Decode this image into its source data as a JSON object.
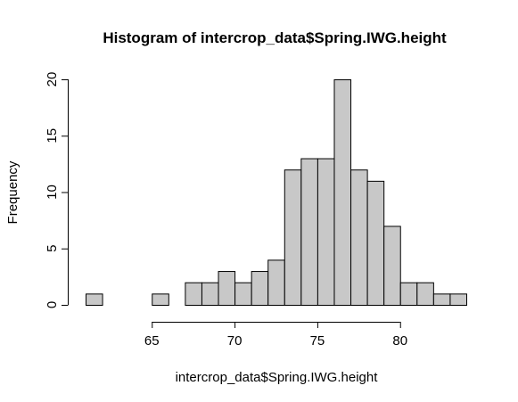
{
  "chart_data": {
    "type": "bar",
    "title": "Histogram of intercrop_data$Spring.IWG.height",
    "xlabel": "intercrop_data$Spring.IWG.height",
    "ylabel": "Frequency",
    "bin_start": 61,
    "bin_width": 1,
    "values": [
      1,
      0,
      0,
      0,
      1,
      0,
      2,
      2,
      3,
      2,
      3,
      4,
      12,
      13,
      13,
      20,
      12,
      11,
      7,
      2,
      2,
      1,
      1
    ],
    "xlim": [
      61,
      84
    ],
    "ylim": [
      0,
      20
    ],
    "x_ticks": [
      65,
      70,
      75,
      80
    ],
    "y_ticks": [
      0,
      5,
      10,
      15,
      20
    ],
    "bar_color": "#c8c8c8",
    "grid": false
  }
}
